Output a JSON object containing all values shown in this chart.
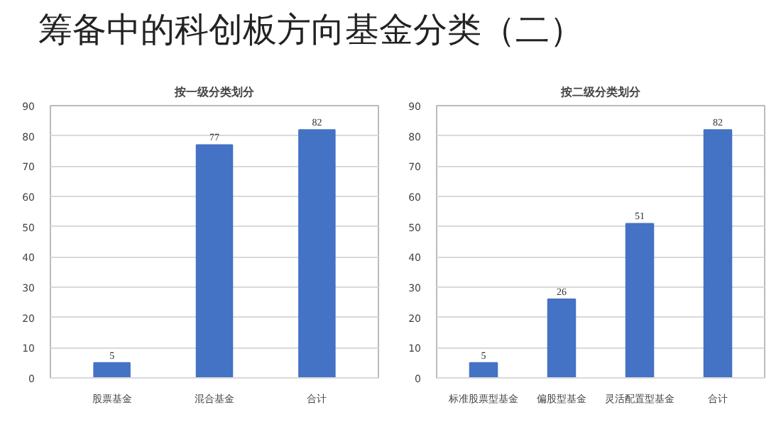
{
  "chart_data": [
    {
      "type": "other",
      "title": "筹备中的科创板方向基金分类（二）"
    },
    {
      "type": "bar",
      "title": "按一级分类划分",
      "categories": [
        "股票基金",
        "混合基金",
        "合计"
      ],
      "values": [
        5,
        77,
        82
      ],
      "color": "#4472c4",
      "ylim": [
        0,
        90
      ],
      "yticks": [
        0,
        10,
        20,
        30,
        40,
        50,
        60,
        70,
        80,
        90
      ],
      "grid": "y",
      "data_labels": true
    },
    {
      "type": "bar",
      "title": "按二级分类划分",
      "categories": [
        "标准股票型基金",
        "偏股型基金",
        "灵活配置型基金",
        "合计"
      ],
      "values": [
        5,
        26,
        51,
        82
      ],
      "color": "#4472c4",
      "ylim": [
        0,
        90
      ],
      "yticks": [
        0,
        10,
        20,
        30,
        40,
        50,
        60,
        70,
        80,
        90
      ],
      "grid": "y",
      "data_labels": true
    }
  ]
}
